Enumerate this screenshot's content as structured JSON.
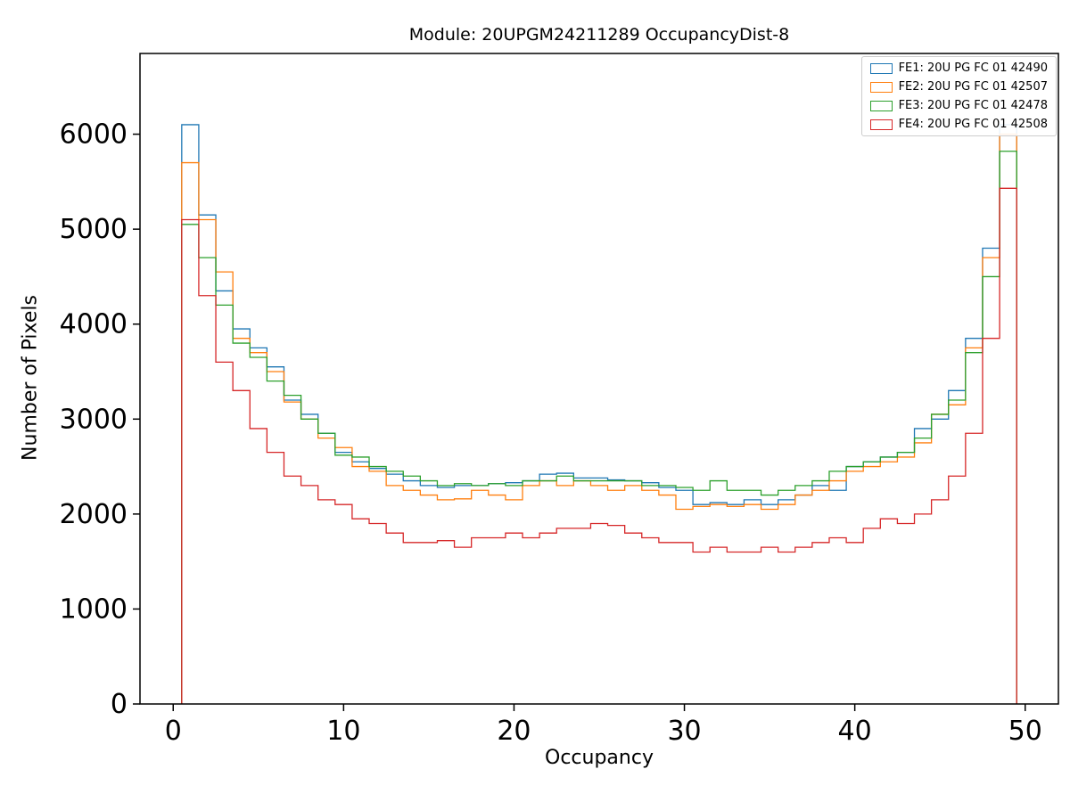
{
  "chart_data": {
    "type": "step-histogram",
    "title": "Module: 20UPGM24211289 OccupancyDist-8",
    "xlabel": "Occupancy",
    "ylabel": "Number of Pixels",
    "xlim": [
      -1.95,
      51.95
    ],
    "ylim": [
      0,
      6850
    ],
    "xticks": [
      0,
      10,
      20,
      30,
      40,
      50
    ],
    "yticks": [
      0,
      1000,
      2000,
      3000,
      4000,
      5000,
      6000
    ],
    "bin_start": 0.5,
    "bin_width": 1,
    "grid": false,
    "legend_position": "upper right",
    "series": [
      {
        "name": "FE1: 20U PG FC 01 42490",
        "color": "#1f77b4",
        "values": [
          6100,
          5150,
          4350,
          3950,
          3750,
          3550,
          3200,
          3050,
          2850,
          2650,
          2550,
          2480,
          2420,
          2350,
          2300,
          2280,
          2300,
          2300,
          2320,
          2330,
          2350,
          2420,
          2430,
          2380,
          2380,
          2360,
          2350,
          2330,
          2280,
          2250,
          2100,
          2120,
          2100,
          2150,
          2100,
          2150,
          2200,
          2300,
          2250,
          2500,
          2550,
          2600,
          2650,
          2900,
          3000,
          3300,
          3850,
          4800,
          6100
        ]
      },
      {
        "name": "FE2: 20U PG FC 01 42507",
        "color": "#ff7f0e",
        "values": [
          5700,
          5100,
          4550,
          3850,
          3700,
          3500,
          3180,
          3000,
          2800,
          2700,
          2500,
          2450,
          2300,
          2250,
          2200,
          2150,
          2160,
          2250,
          2200,
          2150,
          2300,
          2350,
          2300,
          2350,
          2300,
          2250,
          2300,
          2250,
          2200,
          2050,
          2080,
          2100,
          2080,
          2100,
          2050,
          2100,
          2200,
          2250,
          2350,
          2450,
          2500,
          2550,
          2600,
          2750,
          3050,
          3150,
          3750,
          4700,
          6000
        ]
      },
      {
        "name": "FE3: 20U PG FC 01 42478",
        "color": "#2ca02c",
        "values": [
          5050,
          4700,
          4200,
          3800,
          3650,
          3400,
          3250,
          3000,
          2850,
          2620,
          2600,
          2500,
          2450,
          2400,
          2350,
          2300,
          2320,
          2300,
          2320,
          2300,
          2350,
          2350,
          2400,
          2350,
          2350,
          2350,
          2350,
          2300,
          2300,
          2280,
          2250,
          2350,
          2250,
          2250,
          2200,
          2250,
          2300,
          2350,
          2450,
          2500,
          2550,
          2600,
          2650,
          2800,
          3050,
          3200,
          3700,
          4500,
          5820
        ]
      },
      {
        "name": "FE4: 20U PG FC 01 42508",
        "color": "#d62728",
        "values": [
          5100,
          4300,
          3600,
          3300,
          2900,
          2650,
          2400,
          2300,
          2150,
          2100,
          1950,
          1900,
          1800,
          1700,
          1700,
          1720,
          1650,
          1750,
          1750,
          1800,
          1750,
          1800,
          1850,
          1850,
          1900,
          1880,
          1800,
          1750,
          1700,
          1700,
          1600,
          1650,
          1600,
          1600,
          1650,
          1600,
          1650,
          1700,
          1750,
          1700,
          1850,
          1950,
          1900,
          2000,
          2150,
          2400,
          2850,
          3850,
          5430
        ]
      }
    ]
  }
}
